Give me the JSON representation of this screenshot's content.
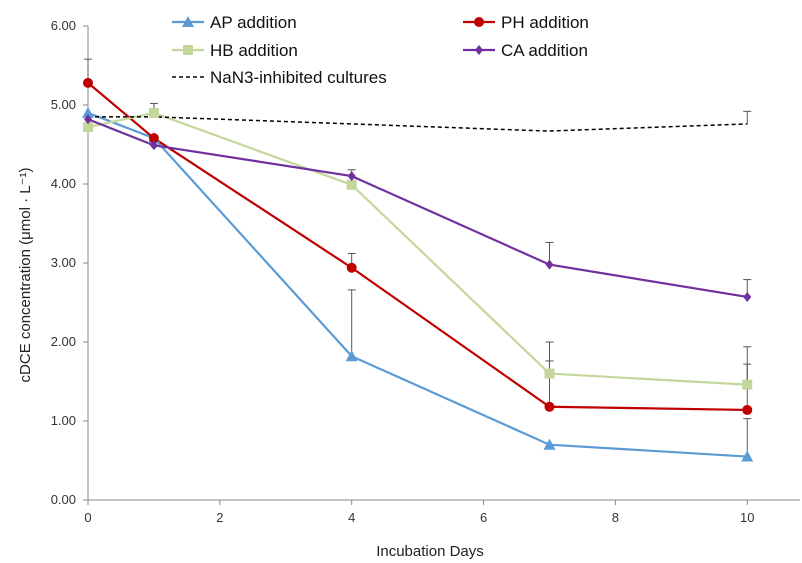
{
  "chart_data": {
    "type": "line",
    "title": "",
    "xlabel": "Incubation Days",
    "ylabel": "cDCE concentration  (μmol · L⁻¹)",
    "xlim": [
      0,
      10.8
    ],
    "ylim": [
      0,
      6
    ],
    "x_ticks": [
      "0",
      "2",
      "4",
      "6",
      "8",
      "10"
    ],
    "y_ticks": [
      "0.00",
      "1.00",
      "2.00",
      "3.00",
      "4.00",
      "5.00",
      "6.00"
    ],
    "grid": false,
    "legend_placement": "top",
    "series": [
      {
        "name": "AP addition",
        "color": "#5b9bd5",
        "marker": "triangle",
        "x": [
          0,
          1,
          4,
          7,
          10
        ],
        "y": [
          4.9,
          4.58,
          1.82,
          0.7,
          0.55
        ],
        "error": [
          0,
          0,
          0.84,
          0,
          0.48
        ]
      },
      {
        "name": "PH addition",
        "color": "#c00000",
        "marker": "circle",
        "x": [
          0,
          1,
          4,
          7,
          10
        ],
        "y": [
          5.28,
          4.58,
          2.94,
          1.18,
          1.14
        ],
        "error": [
          0.3,
          0,
          0.18,
          0.58,
          0.58
        ]
      },
      {
        "name": "HB addition",
        "color": "#c4d79b",
        "marker": "square",
        "x": [
          0,
          1,
          4,
          7,
          10
        ],
        "y": [
          4.72,
          4.9,
          3.99,
          1.6,
          1.46
        ],
        "error": [
          0,
          0.12,
          0,
          0.4,
          0.48
        ]
      },
      {
        "name": "CA addition",
        "color": "#7030a0",
        "marker": "diamond",
        "x": [
          0,
          1,
          4,
          7,
          10
        ],
        "y": [
          4.82,
          4.49,
          4.1,
          2.98,
          2.57
        ],
        "error": [
          0,
          0,
          0.08,
          0.28,
          0.22
        ]
      },
      {
        "name": "NaN3-inhibited cultures",
        "color": "#000000",
        "marker": "none",
        "dash": true,
        "x": [
          0,
          1,
          4,
          7,
          10
        ],
        "y": [
          4.85,
          4.85,
          4.76,
          4.67,
          4.76
        ],
        "error": [
          0,
          0,
          0,
          0,
          0.16
        ]
      }
    ]
  }
}
